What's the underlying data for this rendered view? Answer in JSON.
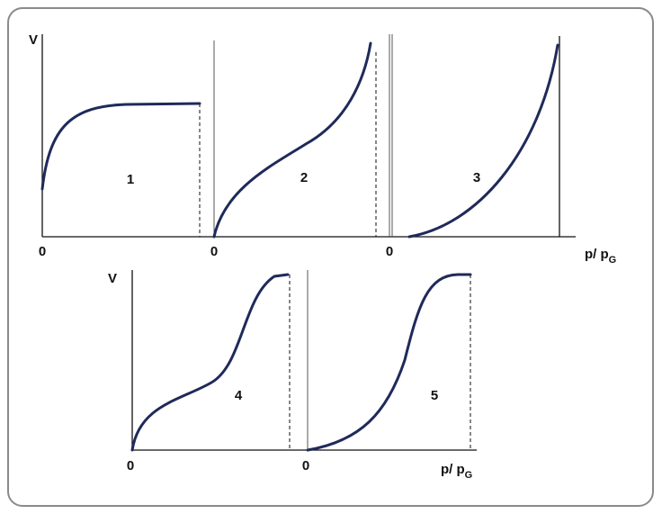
{
  "rows": [
    {
      "y_label": "V",
      "x_label": {
        "main": "p/ p",
        "sub": "G"
      },
      "panels": [
        {
          "label": "1",
          "origin": "0"
        },
        {
          "label": "2",
          "origin": "0"
        },
        {
          "label": "3",
          "origin": "0"
        }
      ]
    },
    {
      "y_label": "V",
      "x_label": {
        "main": "p/ p",
        "sub": "G"
      },
      "panels": [
        {
          "label": "4",
          "origin": "0"
        },
        {
          "label": "5",
          "origin": "0"
        }
      ]
    }
  ]
}
